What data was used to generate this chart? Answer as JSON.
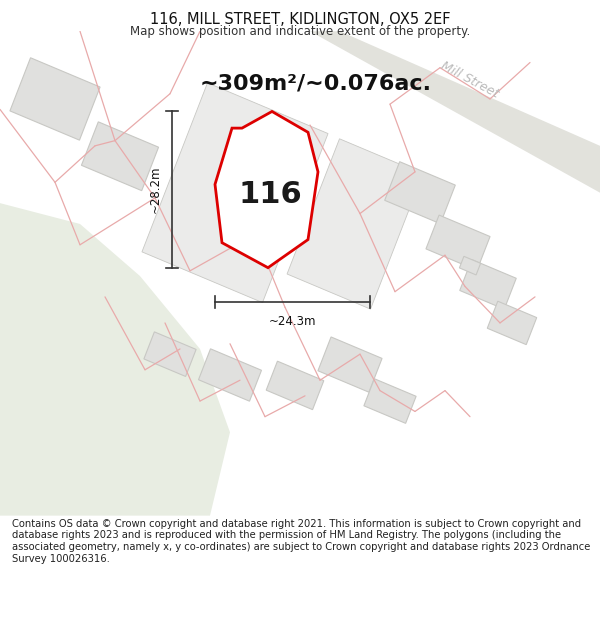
{
  "title": "116, MILL STREET, KIDLINGTON, OX5 2EF",
  "subtitle": "Map shows position and indicative extent of the property.",
  "area_text": "~309m²/~0.076ac.",
  "label_116": "116",
  "dim_width": "~24.3m",
  "dim_height": "~28.2m",
  "street_label": "Mill Street",
  "footer": "Contains OS data © Crown copyright and database right 2021. This information is subject to Crown copyright and database rights 2023 and is reproduced with the permission of HM Land Registry. The polygons (including the associated geometry, namely x, y co-ordinates) are subject to Crown copyright and database rights 2023 Ordnance Survey 100026316.",
  "map_bg": "#f7f7f5",
  "green_fill": "#e8ede2",
  "road_fill": "#e2e2dc",
  "plot_line_color": "#dd0000",
  "building_fill": "#e0e0de",
  "building_edge": "#c8c8c4",
  "pink_line_color": "#e8aaaa",
  "dim_line_color": "#333333",
  "street_label_color": "#bbbbbb",
  "footer_fontsize": 7.2,
  "title_fontsize": 10.5,
  "subtitle_fontsize": 8.5,
  "area_fontsize": 16,
  "label_fontsize": 22,
  "dim_fontsize": 8.5
}
